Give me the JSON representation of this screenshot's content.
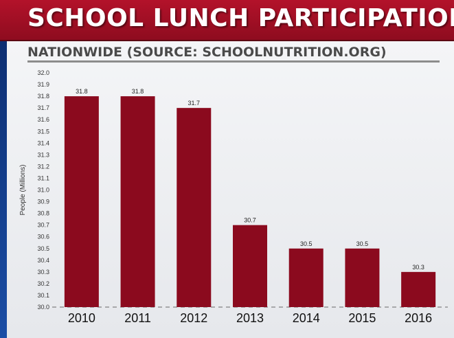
{
  "header": {
    "title": "SCHOOL LUNCH PARTICIPATION"
  },
  "subtitle": "NATIONWIDE (SOURCE: SCHOOLNUTRITION.ORG)",
  "colors": {
    "title_bar": "#a3102a",
    "bar": "#8b0a1e",
    "panel": "#eef0f3",
    "background": "#1b4fa8"
  },
  "chart_data": {
    "type": "bar",
    "title": "SCHOOL LUNCH PARTICIPATION",
    "subtitle": "NATIONWIDE (SOURCE: SCHOOLNUTRITION.ORG)",
    "xlabel": "",
    "ylabel": "People (Millions)",
    "categories": [
      "2010",
      "2011",
      "2012",
      "2013",
      "2014",
      "2015",
      "2016"
    ],
    "values": [
      31.8,
      31.8,
      31.7,
      30.7,
      30.5,
      30.5,
      30.3
    ],
    "data_labels": [
      "31.8",
      "31.8",
      "31.7",
      "30.7",
      "30.5",
      "30.5",
      "30.3"
    ],
    "ylim": [
      30.0,
      32.0
    ],
    "yticks": [
      "30.0",
      "30.1",
      "30.2",
      "30.3",
      "30.4",
      "30.5",
      "30.6",
      "30.7",
      "30.8",
      "30.9",
      "31.0",
      "31.1",
      "31.2",
      "31.3",
      "31.4",
      "31.5",
      "31.6",
      "31.7",
      "31.8",
      "31.9",
      "32.0"
    ],
    "grid": false,
    "legend": "none"
  }
}
